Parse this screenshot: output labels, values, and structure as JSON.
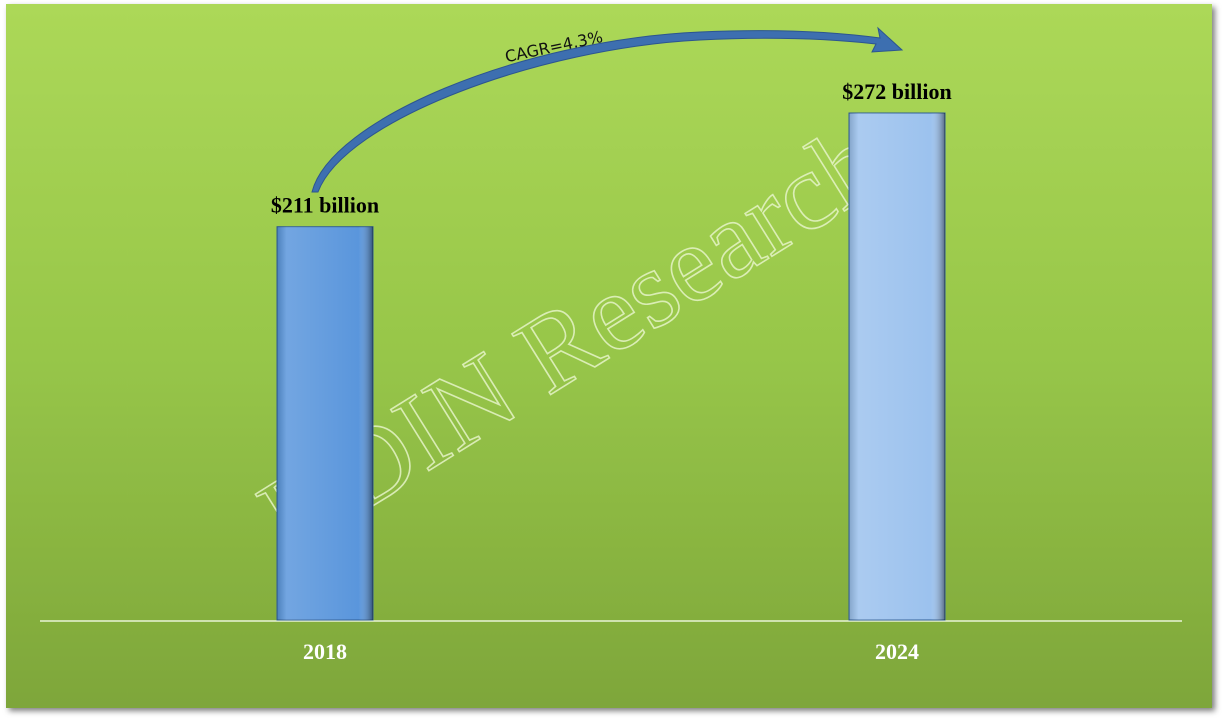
{
  "chart_data": {
    "type": "bar",
    "categories": [
      "2018",
      "2024"
    ],
    "values": [
      211,
      272
    ],
    "value_labels": [
      "$211 billion",
      "$272 billion"
    ],
    "colors": [
      "#5a96dc",
      "#9cc2ee"
    ],
    "annotation": "CAGR=4.3%",
    "watermark": "HDIN Research"
  }
}
